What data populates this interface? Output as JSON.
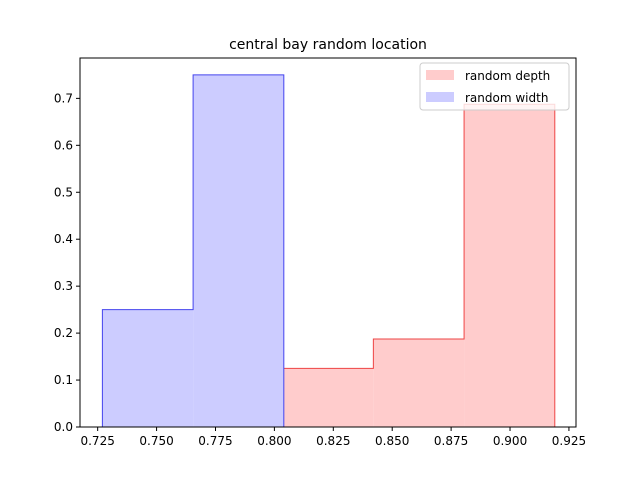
{
  "chart_data": {
    "type": "histogram",
    "title": "central bay random location",
    "xlabel": "",
    "ylabel": "",
    "xlim": [
      0.7175,
      0.928
    ],
    "ylim": [
      0,
      0.786
    ],
    "xticks": [
      0.725,
      0.75,
      0.775,
      0.8,
      0.825,
      0.85,
      0.875,
      0.9,
      0.925
    ],
    "xtick_labels": [
      "0.725",
      "0.750",
      "0.775",
      "0.800",
      "0.825",
      "0.850",
      "0.875",
      "0.900",
      "0.925"
    ],
    "yticks": [
      0.0,
      0.1,
      0.2,
      0.3,
      0.4,
      0.5,
      0.6,
      0.7
    ],
    "ytick_labels": [
      "0.0",
      "0.1",
      "0.2",
      "0.3",
      "0.4",
      "0.5",
      "0.6",
      "0.7"
    ],
    "grid": false,
    "legend_position": "top-right",
    "series": [
      {
        "name": "random depth",
        "fill": "#ffcccc",
        "edge": "#ee4444",
        "bin_edges": [
          0.8035,
          0.842,
          0.8805,
          0.919
        ],
        "values": [
          0.125,
          0.1875,
          0.6875
        ]
      },
      {
        "name": "random width",
        "fill": "#ccccff",
        "edge": "#4444ee",
        "bin_edges": [
          0.727,
          0.7655,
          0.804
        ],
        "values": [
          0.25,
          0.75
        ]
      }
    ]
  }
}
